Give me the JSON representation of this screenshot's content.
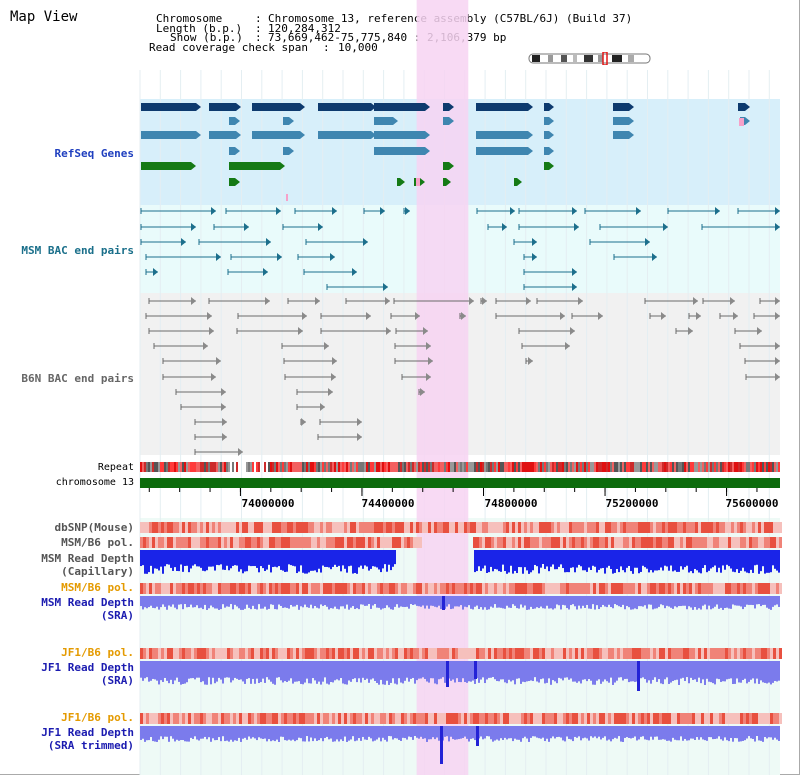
{
  "page": {
    "title": "Map View"
  },
  "header": {
    "chromosome_key": "Chromosome",
    "chromosome_val": "Chromosome 13, reference assembly (C57BL/6J) (Build 37)",
    "length_key": "Length (b.p.)",
    "length_val": "120,284,312",
    "show_key": "Show (b.p.)",
    "show_val": "73,669,462-75,775,840 : 2,106,379 bp",
    "coverage_key": "Read coverage check span",
    "coverage_val": "10,000"
  },
  "tracks": {
    "refseq": "RefSeq Genes",
    "msm_bac": "MSM BAC end pairs",
    "b6n_bac": "B6N BAC end pairs",
    "repeat": "Repeat",
    "chromosome": "chromosome 13",
    "dbsnp": "dbSNP(Mouse)",
    "msm_b6_pol_1": "MSM/B6 pol.",
    "msm_read_depth_cap_1": "MSM Read Depth",
    "msm_read_depth_cap_2": "(Capillary)",
    "msm_b6_pol_2": "MSM/B6 pol.",
    "msm_read_depth_sra_1": "MSM Read Depth",
    "msm_read_depth_sra_2": "(SRA)",
    "jf1_b6_pol_1": "JF1/B6 pol.",
    "jf1_read_depth_1": "JF1 Read Depth",
    "jf1_read_depth_2": "(SRA)",
    "jf1_b6_pol_2": "JF1/B6 pol.",
    "jf1_read_depth_t_1": "JF1 Read Depth",
    "jf1_read_depth_t_2": "(SRA trimmed)"
  },
  "axis": {
    "ticks": [
      "74000000",
      "74400000",
      "74800000",
      "75200000",
      "75600000"
    ],
    "tick_values": [
      74000000,
      74400000,
      74800000,
      75200000,
      75600000
    ],
    "range": [
      73669462,
      75775840
    ],
    "highlight_range": [
      74580000,
      74750000
    ]
  },
  "colors": {
    "refseq_bg": "#d7effa",
    "bac_bg": "#e9fbfb",
    "b6n_bg": "#f1f1f1",
    "highlight": "#f7d3f2",
    "refseq_navy": "#0d3a6e",
    "refseq_steel": "#3f86b0",
    "refseq_green": "#157a15",
    "bac_teal": "#1c6f8c",
    "bac_gray": "#6a6a6a",
    "chromosome_green": "#0c6b0c",
    "depth_blue": "#1a24e8",
    "depth_lilac": "#7b7bec",
    "pol_red": "#e8503f",
    "pol_pink": "#f6c0bc"
  }
}
